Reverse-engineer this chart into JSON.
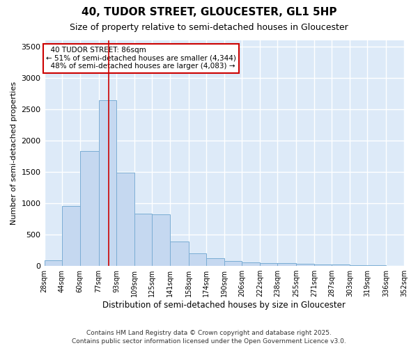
{
  "title": "40, TUDOR STREET, GLOUCESTER, GL1 5HP",
  "subtitle": "Size of property relative to semi-detached houses in Gloucester",
  "xlabel": "Distribution of semi-detached houses by size in Gloucester",
  "ylabel": "Number of semi-detached properties",
  "footnote": "Contains HM Land Registry data © Crown copyright and database right 2025.\nContains public sector information licensed under the Open Government Licence v3.0.",
  "bins": [
    "28sqm",
    "44sqm",
    "60sqm",
    "77sqm",
    "93sqm",
    "109sqm",
    "125sqm",
    "141sqm",
    "158sqm",
    "174sqm",
    "190sqm",
    "206sqm",
    "222sqm",
    "238sqm",
    "255sqm",
    "271sqm",
    "287sqm",
    "303sqm",
    "319sqm",
    "336sqm",
    "352sqm"
  ],
  "bin_edges": [
    28,
    44,
    60,
    77,
    93,
    109,
    125,
    141,
    158,
    174,
    190,
    206,
    222,
    238,
    255,
    271,
    287,
    303,
    319,
    336,
    352
  ],
  "values": [
    95,
    960,
    1830,
    2640,
    1490,
    830,
    820,
    390,
    200,
    120,
    75,
    60,
    50,
    45,
    30,
    25,
    20,
    15,
    8,
    5
  ],
  "bar_color": "#c5d8f0",
  "bar_edge_color": "#7aadd4",
  "background_color": "#ddeaf8",
  "grid_color": "#ffffff",
  "property_value": 86,
  "property_label": "40 TUDOR STREET: 86sqm",
  "pct_smaller": 51,
  "count_smaller": 4344,
  "pct_larger": 48,
  "count_larger": 4083,
  "annotation_box_color": "#ffffff",
  "annotation_box_edge": "#cc0000",
  "vline_color": "#cc0000",
  "ylim": [
    0,
    3600
  ],
  "yticks": [
    0,
    500,
    1000,
    1500,
    2000,
    2500,
    3000,
    3500
  ],
  "fig_bg": "#ffffff"
}
